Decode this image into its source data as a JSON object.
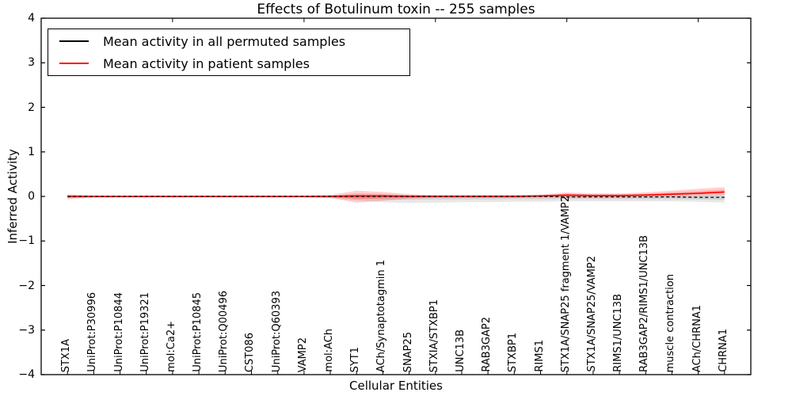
{
  "figure": {
    "title": "Effects of Botulinum toxin -- 255 samples",
    "xlabel": "Cellular Entities",
    "ylabel": "Inferred Activity"
  },
  "legend": {
    "items": [
      {
        "label": "Mean activity in all permuted samples",
        "color": "#000000"
      },
      {
        "label": "Mean activity in patient samples",
        "color": "#ff0000"
      }
    ]
  },
  "chart_data": {
    "type": "line",
    "title": "Effects of Botulinum toxin -- 255 samples",
    "xlabel": "Cellular Entities",
    "ylabel": "Inferred Activity",
    "ylim": [
      -4,
      4
    ],
    "yticks": [
      4,
      3,
      2,
      1,
      0,
      -1,
      -2,
      -3,
      -4
    ],
    "yticklabels": [
      "4",
      "3",
      "2",
      "1",
      "0",
      "−1",
      "−2",
      "−3",
      "−4"
    ],
    "grid": false,
    "legend_position": "upper left",
    "categories": [
      "STX1A",
      "UniProt:P30996",
      "UniProt:P10844",
      "UniProt:P19321",
      "mol:Ca2+",
      "UniProt:P10845",
      "UniProt:Q00496",
      "CST086",
      "UniProt:Q60393",
      "VAMP2",
      "mol:ACh",
      "SYT1",
      "ACh/Synaptotagmin 1",
      "SNAP25",
      "STXIA/STXBP1",
      "UNC13B",
      "RAB3GAP2",
      "STXBP1",
      "RIMS1",
      "STX1A/SNAP25 fragment 1/VAMP2",
      "STX1A/SNAP25/VAMP2",
      "RIMS1/UNC13B",
      "RAB3GAP2/RIMS1/UNC13B",
      "muscle contraction",
      "ACh/CHRNA1",
      "CHRNA1"
    ],
    "series": [
      {
        "name": "Mean activity in all permuted samples",
        "color": "#000000",
        "line_style": "dashed",
        "values": [
          0,
          0,
          0,
          0,
          0,
          0,
          0,
          0,
          0,
          0,
          0,
          0,
          0,
          0,
          0,
          0,
          0,
          0,
          0,
          -0.01,
          -0.01,
          -0.01,
          -0.01,
          -0.01,
          -0.02,
          -0.02
        ],
        "band_upper": [
          0.03,
          0.02,
          0.02,
          0.02,
          0.02,
          0.02,
          0.02,
          0.02,
          0.02,
          0.02,
          0.03,
          0.04,
          0.04,
          0.04,
          0.03,
          0.03,
          0.03,
          0.03,
          0.03,
          0.04,
          0.04,
          0.04,
          0.04,
          0.04,
          0.04,
          0.05
        ],
        "band_lower": [
          -0.07,
          -0.04,
          -0.03,
          -0.03,
          -0.03,
          -0.03,
          -0.03,
          -0.03,
          -0.03,
          -0.03,
          -0.05,
          -0.09,
          -0.13,
          -0.15,
          -0.14,
          -0.13,
          -0.13,
          -0.12,
          -0.12,
          -0.11,
          -0.11,
          -0.11,
          -0.11,
          -0.11,
          -0.12,
          -0.14
        ],
        "band_color": "rgba(0,0,0,0.09)"
      },
      {
        "name": "Mean activity in patient samples",
        "color": "#ff0000",
        "line_style": "solid",
        "values": [
          0,
          0,
          0,
          0,
          0,
          0,
          0,
          0,
          0,
          0,
          0,
          0.01,
          0.01,
          0,
          0,
          0,
          0,
          0,
          0.01,
          0.03,
          0.02,
          0.02,
          0.03,
          0.05,
          0.07,
          0.1
        ],
        "band_upper": [
          0.05,
          0.02,
          0.02,
          0.02,
          0.02,
          0.02,
          0.02,
          0.02,
          0.02,
          0.02,
          0.03,
          0.13,
          0.1,
          0.05,
          0.03,
          0.03,
          0.03,
          0.03,
          0.04,
          0.09,
          0.07,
          0.07,
          0.09,
          0.13,
          0.17,
          0.21
        ],
        "band_lower": [
          -0.05,
          -0.02,
          -0.02,
          -0.02,
          -0.02,
          -0.02,
          -0.02,
          -0.02,
          -0.02,
          -0.02,
          -0.03,
          -0.14,
          -0.1,
          -0.05,
          -0.03,
          -0.03,
          -0.03,
          -0.03,
          -0.02,
          -0.02,
          -0.02,
          -0.02,
          -0.01,
          0,
          0.01,
          0.02
        ],
        "band_color": "rgba(255,0,0,0.18)"
      }
    ]
  }
}
